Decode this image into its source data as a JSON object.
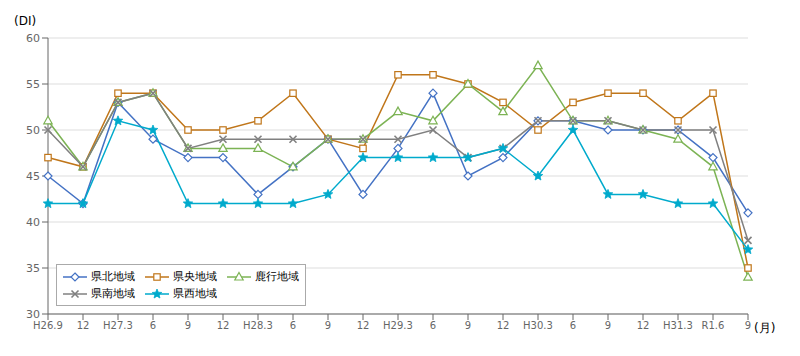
{
  "chart_data": {
    "type": "line",
    "categories": [
      "H26.9",
      "12",
      "H27.3",
      "6",
      "9",
      "12",
      "H28.3",
      "6",
      "9",
      "12",
      "H29.3",
      "6",
      "9",
      "12",
      "H30.3",
      "6",
      "9",
      "12",
      "H31.3",
      "R1.6",
      "9"
    ],
    "series": [
      {
        "name": "県北地域",
        "color": "#4472C4",
        "marker": "diamond",
        "values": [
          45,
          42,
          53,
          49,
          47,
          47,
          43,
          46,
          49,
          43,
          48,
          54,
          45,
          47,
          51,
          51,
          50,
          50,
          50,
          47,
          41
        ]
      },
      {
        "name": "県央地域",
        "color": "#C0761A",
        "marker": "square",
        "values": [
          47,
          46,
          54,
          54,
          50,
          50,
          51,
          54,
          49,
          48,
          56,
          56,
          55,
          53,
          50,
          53,
          54,
          54,
          51,
          54,
          35
        ]
      },
      {
        "name": "鹿行地域",
        "color": "#7CB354",
        "marker": "triangle",
        "values": [
          51,
          46,
          53,
          54,
          48,
          48,
          48,
          46,
          49,
          49,
          52,
          51,
          55,
          52,
          57,
          51,
          51,
          50,
          49,
          46,
          34
        ]
      },
      {
        "name": "県南地域",
        "color": "#808080",
        "marker": "cross",
        "values": [
          50,
          46,
          53,
          54,
          48,
          49,
          49,
          49,
          49,
          49,
          49,
          50,
          47,
          48,
          51,
          51,
          51,
          50,
          50,
          50,
          38
        ]
      },
      {
        "name": "県西地域",
        "color": "#00AACC",
        "marker": "star",
        "values": [
          42,
          42,
          51,
          50,
          42,
          42,
          42,
          42,
          43,
          47,
          47,
          47,
          47,
          48,
          45,
          50,
          43,
          43,
          42,
          42,
          37
        ]
      }
    ],
    "ylim": [
      30,
      60
    ],
    "yticks": [
      30,
      35,
      40,
      45,
      50,
      55,
      60
    ],
    "ylabel": "(DI)",
    "xlabel": "(月)",
    "grid": true,
    "legend": "lower left"
  }
}
